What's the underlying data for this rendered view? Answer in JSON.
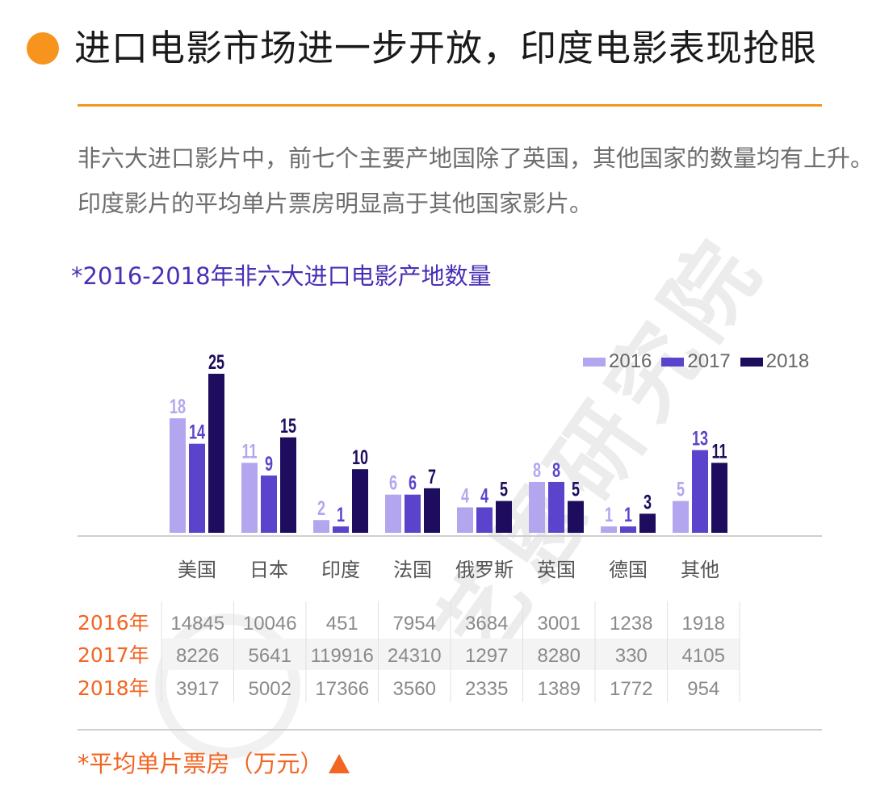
{
  "header": {
    "title": "进口电影市场进一步开放，印度电影表现抢眼",
    "description_line1": "非六大进口影片中，前七个主要产地国除了英国，其他国家的数量均有上升。",
    "description_line2": "印度影片的平均单片票房明显高于其他国家影片。",
    "chart_subtitle": "*2016-2018年非六大进口电影产地数量"
  },
  "watermark": "艺恩研究院",
  "colors": {
    "accent": "#f7941d",
    "footnote": "#f26522",
    "series_2016": "#b4a6ee",
    "series_2017": "#5b43cc",
    "series_2018": "#1e0c5e"
  },
  "chart_data": [
    {
      "type": "bar",
      "title": "*2016-2018年非六大进口电影产地数量",
      "categories": [
        "美国",
        "日本",
        "印度",
        "法国",
        "俄罗斯",
        "英国",
        "德国",
        "其他"
      ],
      "series": [
        {
          "name": "2016",
          "values": [
            18,
            11,
            2,
            6,
            4,
            8,
            1,
            5
          ]
        },
        {
          "name": "2017",
          "values": [
            14,
            9,
            1,
            6,
            4,
            8,
            1,
            13
          ]
        },
        {
          "name": "2018",
          "values": [
            25,
            15,
            10,
            7,
            5,
            5,
            3,
            11
          ]
        }
      ],
      "ylim": [
        0,
        25
      ],
      "grid": false,
      "legend_position": "top-right",
      "data_labels": true
    },
    {
      "type": "table",
      "title": "*平均单片票房（万元）",
      "columns": [
        "美国",
        "日本",
        "印度",
        "法国",
        "俄罗斯",
        "英国",
        "德国",
        "其他"
      ],
      "rows": [
        {
          "label": "2016年",
          "values": [
            14845,
            10046,
            451,
            7954,
            3684,
            3001,
            1238,
            1918
          ]
        },
        {
          "label": "2017年",
          "values": [
            8226,
            5641,
            119916,
            24310,
            1297,
            8280,
            330,
            4105
          ]
        },
        {
          "label": "2018年",
          "values": [
            3917,
            5002,
            17366,
            3560,
            2335,
            1389,
            1772,
            954
          ]
        }
      ]
    }
  ],
  "footnote": {
    "text": "*平均单片票房（万元）",
    "marker_icon": "up-triangle-icon"
  }
}
